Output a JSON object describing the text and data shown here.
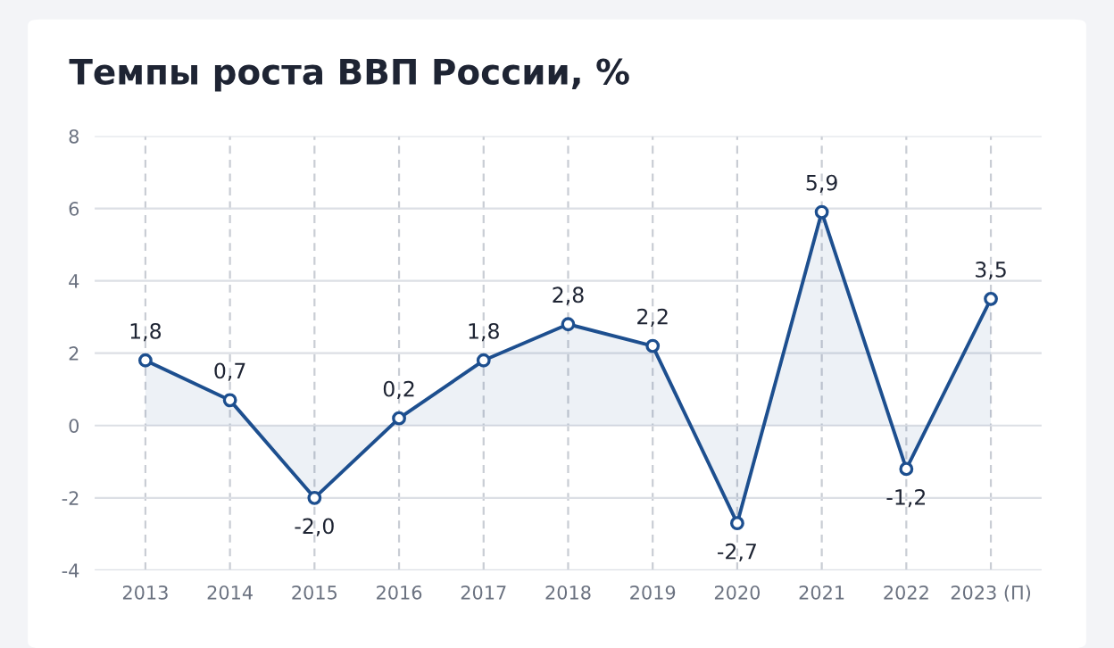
{
  "chart_data": {
    "type": "area",
    "title": "Темпы роста ВВП России, %",
    "categories": [
      "2013",
      "2014",
      "2015",
      "2016",
      "2017",
      "2018",
      "2019",
      "2020",
      "2021",
      "2022",
      "2023 (П)"
    ],
    "series": [
      {
        "color": "#1d4f8f",
        "values": [
          1.8,
          0.7,
          -2.0,
          0.2,
          1.8,
          2.8,
          2.2,
          -2.7,
          5.9,
          -1.2,
          3.5
        ],
        "value_labels": [
          "1,8",
          "0,7",
          "-2,0",
          "0,2",
          "1,8",
          "2,8",
          "2,2",
          "-2,7",
          "5,9",
          "-1,2",
          "3,5"
        ]
      }
    ],
    "ylim": [
      -4,
      8
    ],
    "yticks": [
      -4,
      -2,
      0,
      2,
      4,
      6,
      8
    ],
    "grid": true,
    "marker": "circle",
    "line_style": "solid",
    "legend": false
  }
}
